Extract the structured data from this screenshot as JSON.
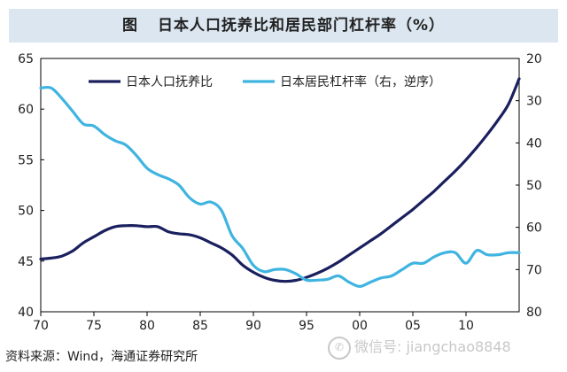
{
  "header": {
    "figure_label": "图",
    "title": "日本人口抚养比和居民部门杠杆率（%）"
  },
  "source": "资料来源：Wind，海通证券研究所",
  "watermark": {
    "icon": "wechat-icon",
    "text": "微信号: jiangchao8848"
  },
  "chart_data": {
    "type": "line",
    "title": "日本人口抚养比和居民部门杠杆率（%）",
    "x_tick_labels": [
      "70",
      "75",
      "80",
      "85",
      "90",
      "95",
      "00",
      "05",
      "10"
    ],
    "x_tick_values": [
      1970,
      1975,
      1980,
      1985,
      1990,
      1995,
      2000,
      2005,
      2010
    ],
    "xlim": [
      1970,
      2015
    ],
    "left_axis": {
      "ylim": [
        40,
        65
      ],
      "ticks": [
        40,
        45,
        50,
        55,
        60,
        65
      ],
      "inverted": false
    },
    "right_axis": {
      "ylim": [
        20,
        80
      ],
      "ticks": [
        20,
        30,
        40,
        50,
        60,
        70,
        80
      ],
      "inverted": true
    },
    "legend": {
      "position": "top",
      "entries": [
        "日本人口抚养比",
        "日本居民杠杆率（右，逆序）"
      ]
    },
    "series": [
      {
        "name": "日本人口抚养比",
        "axis": "left",
        "color": "#1a1f5e",
        "x": [
          1970,
          1971,
          1972,
          1973,
          1974,
          1975,
          1976,
          1977,
          1978,
          1979,
          1980,
          1981,
          1982,
          1983,
          1984,
          1985,
          1986,
          1987,
          1988,
          1989,
          1990,
          1991,
          1992,
          1993,
          1994,
          1995,
          1996,
          1997,
          1998,
          1999,
          2000,
          2001,
          2002,
          2003,
          2004,
          2005,
          2006,
          2007,
          2008,
          2009,
          2010,
          2011,
          2012,
          2013,
          2014,
          2015
        ],
        "values": [
          45.2,
          45.3,
          45.5,
          46.0,
          46.8,
          47.4,
          48.0,
          48.4,
          48.5,
          48.5,
          48.4,
          48.4,
          47.9,
          47.7,
          47.6,
          47.3,
          46.8,
          46.3,
          45.6,
          44.6,
          43.9,
          43.4,
          43.1,
          43.0,
          43.1,
          43.4,
          43.8,
          44.3,
          44.9,
          45.6,
          46.3,
          47.0,
          47.7,
          48.5,
          49.3,
          50.1,
          51.0,
          51.9,
          52.9,
          53.9,
          55.0,
          56.2,
          57.5,
          58.9,
          60.5,
          63.0
        ]
      },
      {
        "name": "日本居民杠杆率（右，逆序）",
        "axis": "right",
        "color": "#3fb4e0",
        "x": [
          1970,
          1971,
          1972,
          1973,
          1974,
          1975,
          1976,
          1977,
          1978,
          1979,
          1980,
          1981,
          1982,
          1983,
          1984,
          1985,
          1986,
          1987,
          1988,
          1989,
          1990,
          1991,
          1992,
          1993,
          1994,
          1995,
          1996,
          1997,
          1998,
          1999,
          2000,
          2001,
          2002,
          2003,
          2004,
          2005,
          2006,
          2007,
          2008,
          2009,
          2010,
          2011,
          2012,
          2013,
          2014,
          2015
        ],
        "values": [
          27,
          27,
          29.5,
          32.5,
          35.5,
          36,
          38,
          39.5,
          40.5,
          43,
          46,
          47.5,
          48.5,
          50,
          53,
          54.5,
          54,
          56,
          62,
          65,
          69,
          70.5,
          70,
          70,
          71,
          72.5,
          72.5,
          72.3,
          71.5,
          73,
          74,
          73,
          72,
          71.5,
          70,
          68.5,
          68.5,
          67,
          66,
          66,
          68.5,
          65.5,
          66.5,
          66.5,
          66,
          66
        ]
      }
    ]
  }
}
